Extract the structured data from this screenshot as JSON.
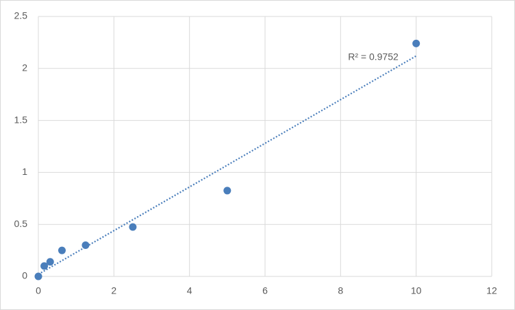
{
  "chart_data": {
    "type": "scatter",
    "x": [
      0,
      0.156,
      0.3125,
      0.625,
      1.25,
      2.5,
      5,
      10
    ],
    "series": [
      {
        "color": "#4a7ebb",
        "values": [
          0,
          0.1,
          0.14,
          0.25,
          0.3,
          0.475,
          0.825,
          2.24
        ]
      }
    ],
    "trendline": {
      "x": [
        0,
        10
      ],
      "values": [
        0.02,
        2.12
      ],
      "color": "#4a7ebb"
    },
    "annotation": "R² = 0.9752",
    "xlim": [
      0,
      12
    ],
    "xticks": [
      0,
      2,
      4,
      6,
      8,
      10,
      12
    ],
    "ylim": [
      0,
      2.5
    ],
    "yticks": [
      0,
      0.5,
      1,
      1.5,
      2,
      2.5
    ],
    "grid": true
  }
}
